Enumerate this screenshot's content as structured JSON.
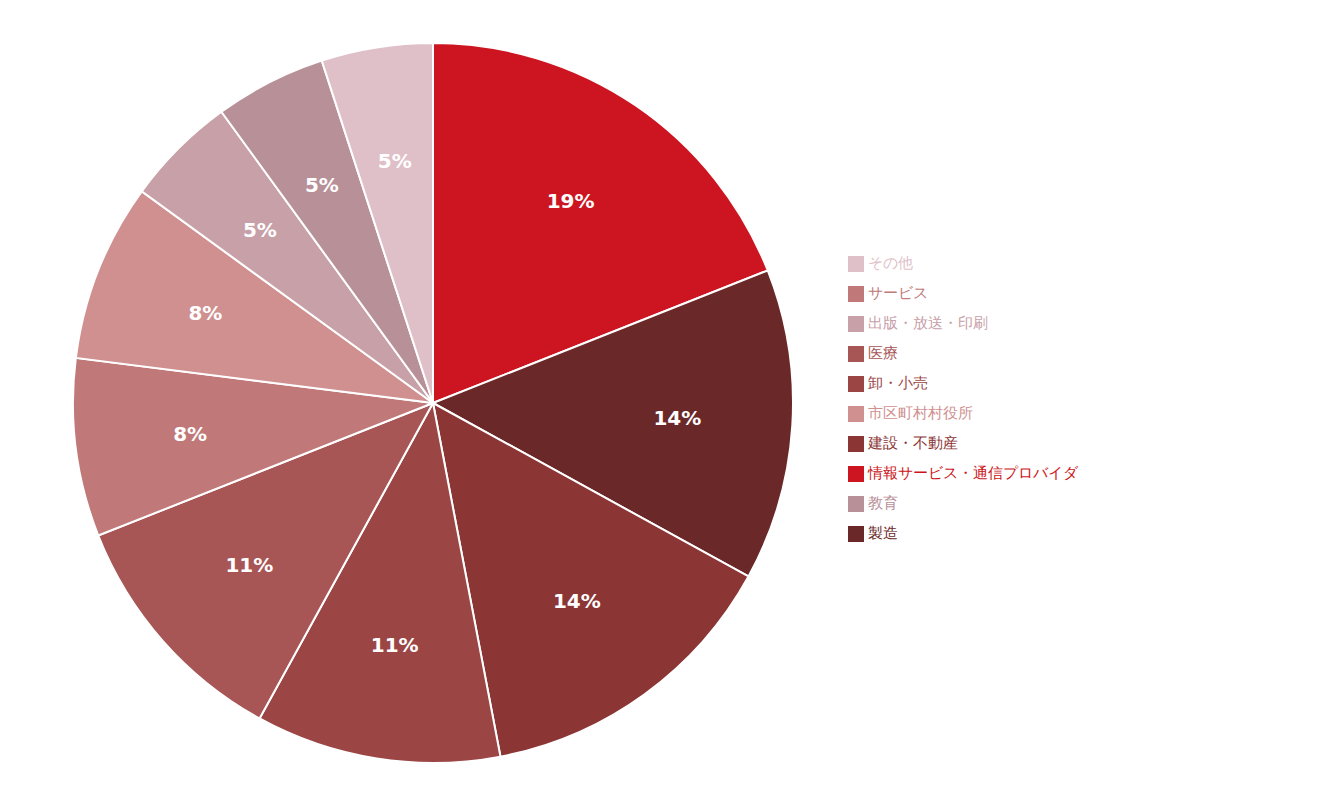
{
  "chart_data": {
    "type": "pie",
    "categories": [
      "情報サービス・通信プロバイダ",
      "製造",
      "建設・不動産",
      "卸・小売",
      "医療",
      "サービス",
      "市区町村村役所",
      "出版・放送・印刷",
      "教育",
      "その他"
    ],
    "values": [
      19,
      14,
      14,
      11,
      11,
      8,
      8,
      5,
      5,
      5
    ],
    "value_labels": [
      "19%",
      "14%",
      "14%",
      "11%",
      "11%",
      "8%",
      "8%",
      "5%",
      "5%",
      "5%"
    ],
    "colors": [
      "#CC1520",
      "#6B2828",
      "#8B3535",
      "#9B4545",
      "#A85555",
      "#C07878",
      "#D09090",
      "#C8A0A8",
      "#B89098",
      "#E0C0C8"
    ],
    "data_labels": true,
    "legend": "right"
  }
}
